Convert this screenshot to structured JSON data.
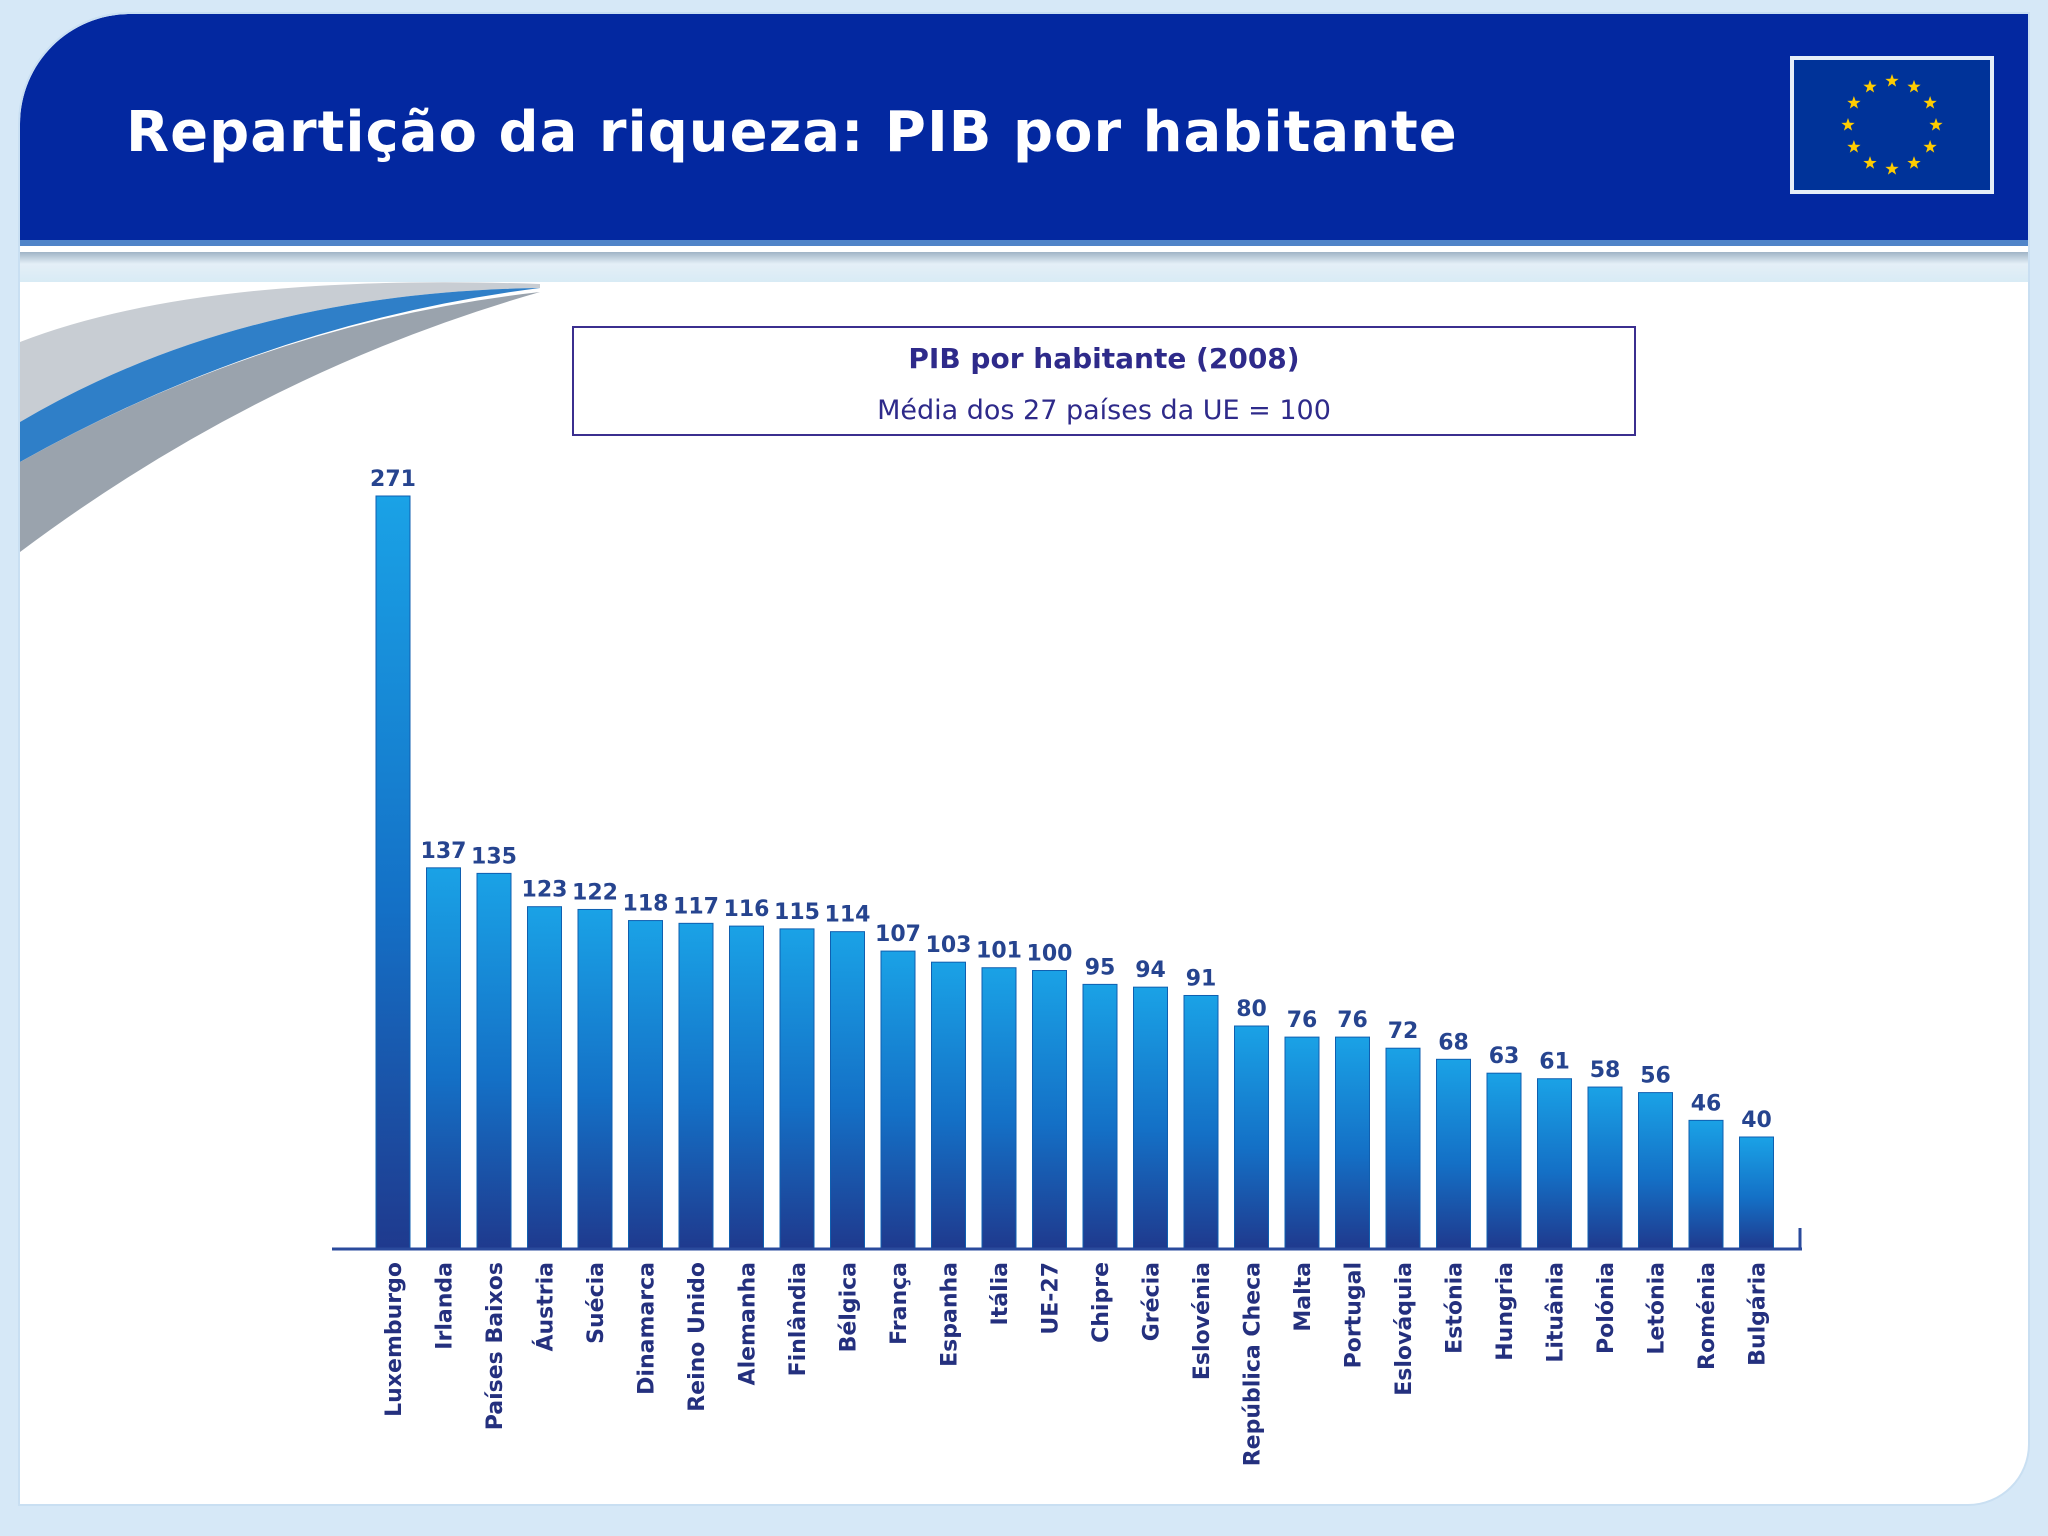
{
  "header": {
    "title": "Repartição da riqueza: PIB por habitante"
  },
  "colors": {
    "header": "#0328a0",
    "bar_top": "#1aa2e6",
    "bar_bottom": "#1f3a8e",
    "text": "#2e2a8a"
  },
  "icons": {
    "flag": "eu-flag-icon"
  },
  "chart_data": {
    "type": "bar",
    "title": "PIB por habitante (2008)",
    "subtitle": "Média dos 27 países da UE = 100",
    "categories": [
      "Luxemburgo",
      "Irlanda",
      "Países Baixos",
      "Áustria",
      "Suécia",
      "Dinamarca",
      "Reino Unido",
      "Alemanha",
      "Finlândia",
      "Bélgica",
      "França",
      "Espanha",
      "Itália",
      "UE-27",
      "Chipre",
      "Grécia",
      "Eslovénia",
      "República Checa",
      "Malta",
      "Portugal",
      "Eslováquia",
      "Estónia",
      "Hungria",
      "Lituânia",
      "Polónia",
      "Letónia",
      "Roménia",
      "Bulgária"
    ],
    "values": [
      271,
      137,
      135,
      123,
      122,
      118,
      117,
      116,
      115,
      114,
      107,
      103,
      101,
      100,
      95,
      94,
      91,
      80,
      76,
      76,
      72,
      68,
      63,
      61,
      58,
      56,
      46,
      40
    ],
    "xlabel": "",
    "ylabel": "",
    "ylim": [
      0,
      280
    ],
    "grid": false,
    "legend": "none"
  }
}
